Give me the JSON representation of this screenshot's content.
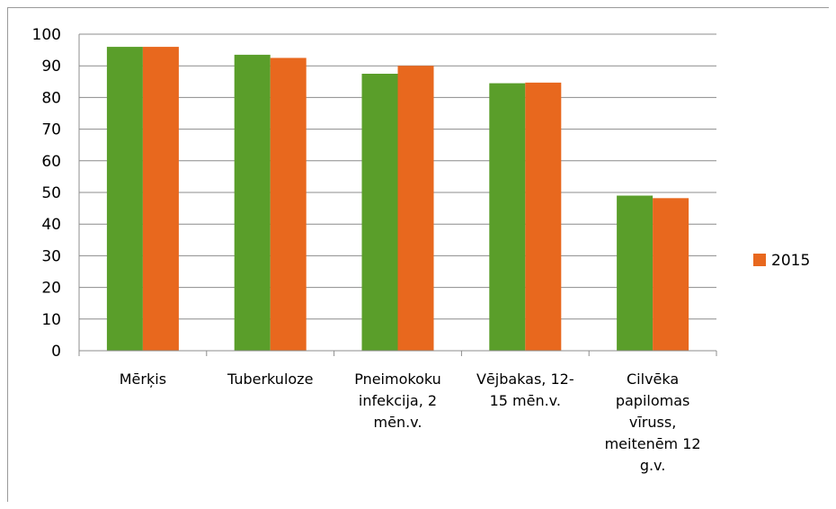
{
  "chart_data": {
    "type": "bar",
    "categories": [
      [
        "Mērķis"
      ],
      [
        "Tuberkuloze"
      ],
      [
        "Pneimokoku",
        "infekcija, 2",
        "mēn.v."
      ],
      [
        "Vējbakas, 12-",
        "15 mēn.v."
      ],
      [
        "Cilvēka",
        "papilomas",
        "vīruss,",
        "meitenēm 12",
        "g.v."
      ]
    ],
    "series": [
      {
        "values": [
          96,
          93.5,
          87.5,
          84.5,
          49
        ],
        "color": "#5a9e2a"
      },
      {
        "name": "2015",
        "values": [
          96,
          92.5,
          90,
          84.7,
          48.2
        ],
        "color": "#e8681e"
      }
    ],
    "ylim": [
      0,
      100
    ],
    "yticks": [
      0,
      10,
      20,
      30,
      40,
      50,
      60,
      70,
      80,
      90,
      100
    ],
    "grid": true,
    "legend": "right"
  }
}
